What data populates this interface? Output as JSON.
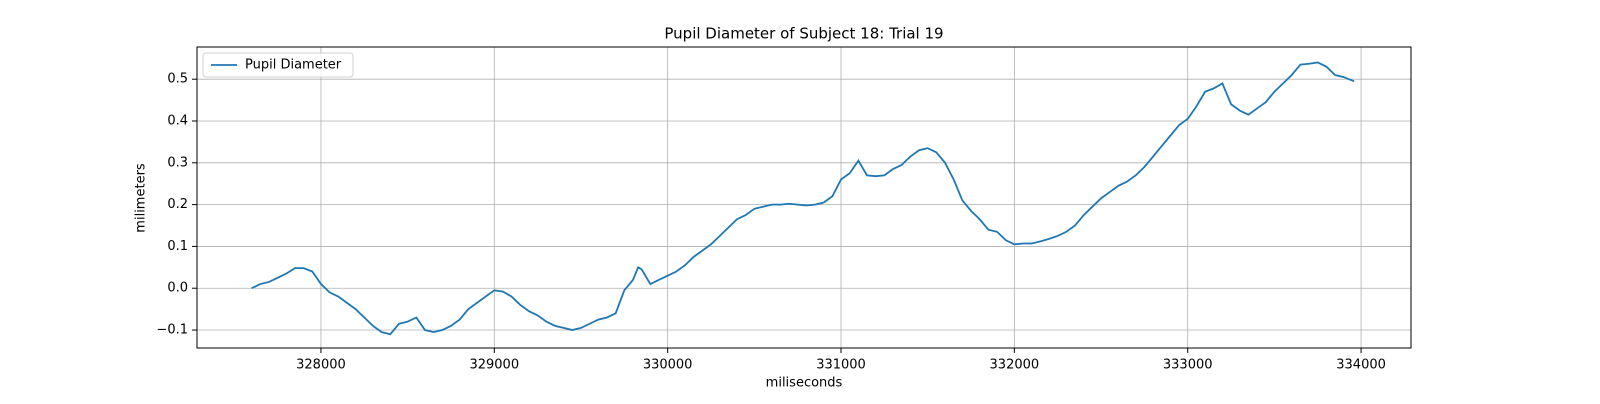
{
  "chart_data": {
    "type": "line",
    "title": "Pupil Diameter of Subject 18: Trial 19",
    "xlabel": "miliseconds",
    "ylabel": "milimeters",
    "x": [
      327600,
      327650,
      327700,
      327750,
      327800,
      327850,
      327900,
      327950,
      328000,
      328050,
      328100,
      328150,
      328200,
      328250,
      328300,
      328350,
      328400,
      328450,
      328500,
      328550,
      328600,
      328650,
      328700,
      328750,
      328800,
      328850,
      328900,
      328950,
      329000,
      329050,
      329100,
      329150,
      329200,
      329250,
      329300,
      329350,
      329400,
      329450,
      329500,
      329550,
      329600,
      329650,
      329700,
      329750,
      329800,
      329830,
      329850,
      329900,
      329950,
      330000,
      330050,
      330100,
      330150,
      330200,
      330250,
      330300,
      330350,
      330400,
      330450,
      330500,
      330550,
      330600,
      330650,
      330700,
      330750,
      330800,
      330850,
      330900,
      330950,
      331000,
      331050,
      331100,
      331150,
      331200,
      331250,
      331300,
      331350,
      331400,
      331450,
      331500,
      331550,
      331600,
      331650,
      331700,
      331750,
      331800,
      331850,
      331900,
      331950,
      332000,
      332050,
      332100,
      332150,
      332200,
      332250,
      332300,
      332350,
      332400,
      332450,
      332500,
      332550,
      332600,
      332650,
      332700,
      332750,
      332800,
      332850,
      332900,
      332950,
      333000,
      333050,
      333100,
      333150,
      333200,
      333250,
      333300,
      333350,
      333400,
      333450,
      333500,
      333550,
      333600,
      333650,
      333700,
      333750,
      333800,
      333850,
      333900,
      333960
    ],
    "series": [
      {
        "name": "Pupil Diameter",
        "color": "#1f77b4",
        "values": [
          0.0,
          0.01,
          0.015,
          0.025,
          0.035,
          0.048,
          0.048,
          0.04,
          0.01,
          -0.01,
          -0.02,
          -0.035,
          -0.05,
          -0.07,
          -0.09,
          -0.105,
          -0.11,
          -0.085,
          -0.08,
          -0.07,
          -0.1,
          -0.105,
          -0.1,
          -0.09,
          -0.075,
          -0.05,
          -0.035,
          -0.02,
          -0.005,
          -0.008,
          -0.02,
          -0.04,
          -0.055,
          -0.065,
          -0.08,
          -0.09,
          -0.095,
          -0.1,
          -0.095,
          -0.085,
          -0.075,
          -0.07,
          -0.06,
          -0.005,
          0.02,
          0.05,
          0.045,
          0.01,
          0.02,
          0.03,
          0.04,
          0.055,
          0.075,
          0.09,
          0.105,
          0.125,
          0.145,
          0.165,
          0.175,
          0.19,
          0.195,
          0.2,
          0.2,
          0.202,
          0.2,
          0.198,
          0.2,
          0.205,
          0.22,
          0.26,
          0.275,
          0.305,
          0.27,
          0.268,
          0.27,
          0.285,
          0.295,
          0.315,
          0.33,
          0.335,
          0.325,
          0.3,
          0.26,
          0.21,
          0.185,
          0.165,
          0.14,
          0.135,
          0.115,
          0.105,
          0.107,
          0.107,
          0.112,
          0.118,
          0.125,
          0.135,
          0.15,
          0.175,
          0.195,
          0.215,
          0.23,
          0.245,
          0.255,
          0.27,
          0.29,
          0.315,
          0.34,
          0.365,
          0.39,
          0.405,
          0.435,
          0.47,
          0.478,
          0.49,
          0.44,
          0.425,
          0.415,
          0.43,
          0.445,
          0.47,
          0.49,
          0.51,
          0.535,
          0.537,
          0.54,
          0.53,
          0.51,
          0.505,
          0.495
        ]
      }
    ],
    "xlim": [
      327285,
      334288
    ],
    "ylim": [
      -0.143,
      0.577
    ],
    "xticks": [
      328000,
      329000,
      330000,
      331000,
      332000,
      333000,
      334000
    ],
    "yticks": [
      {
        "value": -0.1,
        "label": "−0.1"
      },
      {
        "value": 0,
        "label": "0.0"
      },
      0.1,
      0.2,
      0.3,
      0.4,
      0.5
    ],
    "grid": true,
    "legend": "upper-left"
  }
}
